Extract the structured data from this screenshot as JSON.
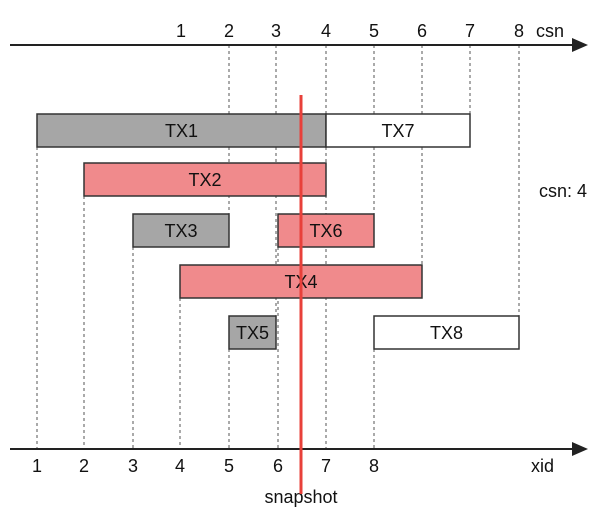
{
  "top_axis": {
    "label": "csn",
    "ticks": [
      "1",
      "2",
      "3",
      "4",
      "5",
      "6",
      "7",
      "8"
    ]
  },
  "bottom_axis": {
    "label": "xid",
    "ticks": [
      "1",
      "2",
      "3",
      "4",
      "5",
      "6",
      "7",
      "8"
    ]
  },
  "snapshot": {
    "label": "snapshot",
    "color": "#e8403a"
  },
  "csn_note": "csn: 4",
  "colors": {
    "gray": "#a6a6a6",
    "pink": "#f08a8c",
    "white": "#ffffff",
    "stroke": "#333333"
  },
  "transactions": [
    {
      "name": "TX1",
      "start": 1,
      "end": 4,
      "row": 0,
      "fill": "gray"
    },
    {
      "name": "TX7",
      "start": 7,
      "end": 7,
      "row": 0,
      "fill": "white"
    },
    {
      "name": "TX2",
      "start": 2,
      "end": 4,
      "row": 1,
      "fill": "pink"
    },
    {
      "name": "TX3",
      "start": 3,
      "end": 2,
      "row": 2,
      "fill": "gray"
    },
    {
      "name": "TX6",
      "start": 6,
      "end": 5,
      "row": 2,
      "fill": "pink"
    },
    {
      "name": "TX4",
      "start": 4,
      "end": 6,
      "row": 3,
      "fill": "pink"
    },
    {
      "name": "TX5",
      "start": 5,
      "end": 3,
      "row": 4,
      "fill": "gray"
    },
    {
      "name": "TX8",
      "start": 8,
      "end": 8,
      "row": 4,
      "fill": "white"
    }
  ]
}
